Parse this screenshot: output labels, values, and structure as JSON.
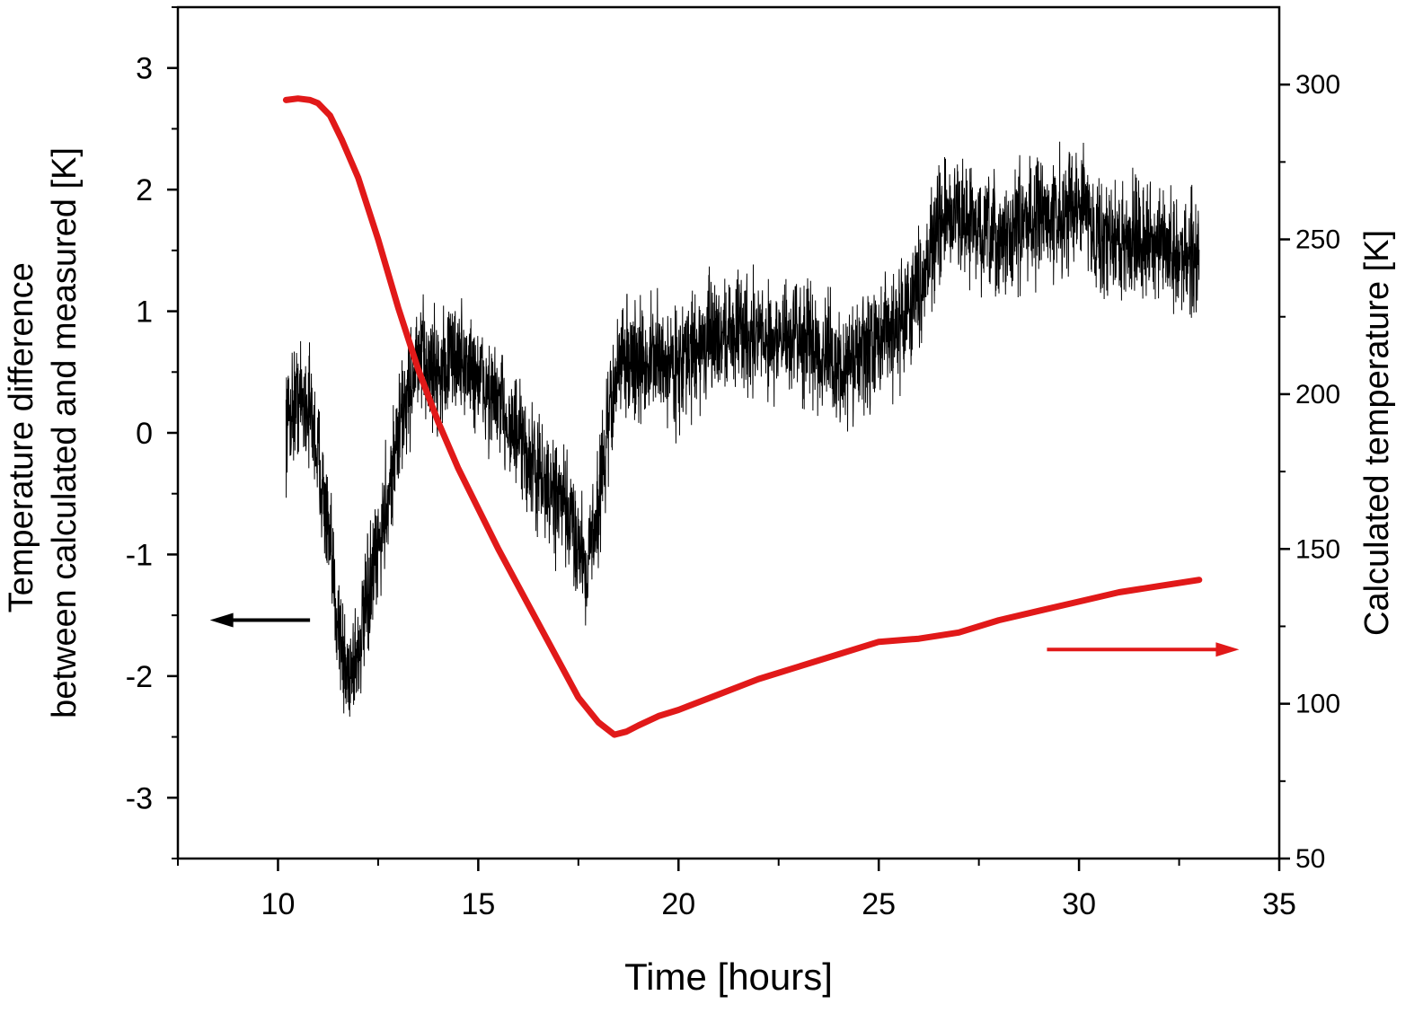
{
  "chart_data": {
    "type": "line",
    "xlabel": "Time [hours]",
    "ylabel_left": [
      "Temperature difference",
      "between calculated and measured [K]"
    ],
    "ylabel_right": "Calculated temperature [K]",
    "xlim": [
      7.5,
      35
    ],
    "ylim_left": [
      -3.5,
      3.5
    ],
    "ylim_right": [
      50,
      325
    ],
    "x_ticks": [
      10,
      15,
      20,
      25,
      30,
      35
    ],
    "y_left_ticks": [
      -3,
      -2,
      -1,
      0,
      1,
      2,
      3
    ],
    "y_right_ticks": [
      50,
      100,
      150,
      200,
      250,
      300
    ],
    "series": [
      {
        "axis": "left",
        "color": "#000000",
        "noise": 0.35,
        "x": [
          10.2,
          10.5,
          10.8,
          11.1,
          11.4,
          11.7,
          12.0,
          12.3,
          12.6,
          12.9,
          13.2,
          13.5,
          13.8,
          14.1,
          14.4,
          14.7,
          15.0,
          15.3,
          15.6,
          15.9,
          16.2,
          16.5,
          16.8,
          17.1,
          17.4,
          17.7,
          18.0,
          18.3,
          18.6,
          19.0,
          19.5,
          20.0,
          20.5,
          21.0,
          21.5,
          22.0,
          22.5,
          23.0,
          23.5,
          24.0,
          24.5,
          25.0,
          25.5,
          26.0,
          26.5,
          27.0,
          27.5,
          28.0,
          28.5,
          29.0,
          29.5,
          30.0,
          30.5,
          31.0,
          31.5,
          32.0,
          32.5,
          33.0
        ],
        "y": [
          0.1,
          0.3,
          0.2,
          -0.4,
          -1.3,
          -2.0,
          -1.8,
          -1.3,
          -0.8,
          -0.2,
          0.3,
          0.6,
          0.55,
          0.5,
          0.65,
          0.55,
          0.45,
          0.3,
          0.2,
          0.0,
          -0.2,
          -0.35,
          -0.5,
          -0.6,
          -0.8,
          -1.1,
          -0.6,
          0.2,
          0.65,
          0.55,
          0.6,
          0.55,
          0.7,
          0.8,
          0.85,
          0.8,
          0.75,
          0.8,
          0.7,
          0.5,
          0.6,
          0.75,
          0.9,
          1.2,
          1.7,
          1.8,
          1.65,
          1.55,
          1.7,
          1.8,
          1.75,
          1.95,
          1.6,
          1.55,
          1.65,
          1.5,
          1.45,
          1.5
        ]
      },
      {
        "axis": "right",
        "color": "#e11919",
        "noise": 0,
        "x": [
          10.2,
          10.5,
          10.8,
          11.0,
          11.3,
          11.6,
          12.0,
          12.5,
          13.0,
          13.5,
          14.0,
          14.5,
          15.0,
          15.5,
          16.0,
          16.5,
          17.0,
          17.5,
          18.0,
          18.4,
          18.7,
          19.0,
          19.5,
          20.0,
          21.0,
          22.0,
          23.0,
          24.0,
          25.0,
          26.0,
          27.0,
          28.0,
          29.0,
          30.0,
          31.0,
          32.0,
          33.0
        ],
        "y": [
          295,
          295.5,
          295,
          294,
          290,
          282,
          270,
          250,
          228,
          208,
          191,
          176,
          163,
          150,
          138,
          126,
          114,
          102,
          94,
          90,
          91,
          93,
          96,
          98,
          103,
          108,
          112,
          116,
          120,
          121,
          123,
          127,
          130,
          133,
          136,
          138,
          140
        ]
      }
    ],
    "annotations": [
      {
        "type": "arrow",
        "direction": "left",
        "color": "#000000",
        "from": [
          10.8,
          -1.54
        ],
        "to": [
          8.3,
          -1.54
        ]
      },
      {
        "type": "arrow",
        "direction": "right",
        "color": "#e11919",
        "from": [
          29.2,
          117.5
        ],
        "to": [
          34.0,
          117.5
        ]
      }
    ]
  }
}
